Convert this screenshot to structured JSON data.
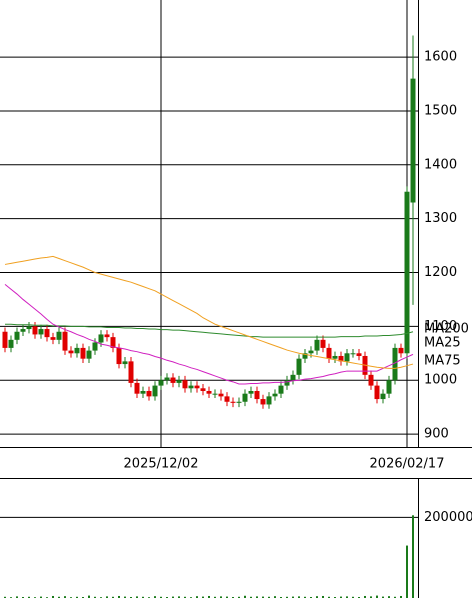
{
  "chart_data": {
    "type": "candlestick",
    "categories": [
      null,
      null,
      null,
      null,
      null,
      null,
      null,
      null,
      null,
      null,
      null,
      null,
      null,
      null,
      null,
      null,
      null,
      null,
      null,
      null,
      null,
      null,
      null,
      null,
      null,
      null,
      "2025/12/02",
      null,
      null,
      null,
      null,
      null,
      null,
      null,
      null,
      null,
      null,
      null,
      null,
      null,
      null,
      null,
      null,
      null,
      null,
      null,
      null,
      null,
      null,
      null,
      null,
      null,
      null,
      null,
      null,
      null,
      null,
      null,
      null,
      null,
      null,
      null,
      null,
      null,
      null,
      null,
      null,
      "2026/02/17",
      null
    ],
    "open": [
      1090,
      1060,
      1075,
      1090,
      1095,
      1100,
      1085,
      1095,
      1080,
      1075,
      1090,
      1055,
      1050,
      1060,
      1040,
      1055,
      1070,
      1085,
      1080,
      1060,
      1030,
      1035,
      995,
      975,
      980,
      970,
      990,
      1000,
      1005,
      995,
      1000,
      985,
      990,
      985,
      980,
      975,
      975,
      970,
      960,
      958,
      960,
      975,
      980,
      965,
      955,
      970,
      975,
      990,
      1000,
      1010,
      1040,
      1050,
      1055,
      1075,
      1060,
      1040,
      1045,
      1035,
      1050,
      1050,
      1045,
      1010,
      990,
      965,
      975,
      1000,
      1060,
      1050,
      1330
    ],
    "high": [
      1098,
      1083,
      1098,
      1103,
      1108,
      1108,
      1103,
      1103,
      1088,
      1098,
      1098,
      1063,
      1068,
      1068,
      1063,
      1078,
      1093,
      1093,
      1088,
      1068,
      1043,
      1043,
      1003,
      988,
      988,
      998,
      1008,
      1013,
      1013,
      1008,
      1008,
      998,
      998,
      993,
      988,
      983,
      983,
      978,
      968,
      968,
      983,
      988,
      988,
      973,
      978,
      983,
      998,
      1008,
      1018,
      1048,
      1058,
      1063,
      1083,
      1083,
      1068,
      1053,
      1053,
      1058,
      1058,
      1058,
      1053,
      1018,
      998,
      983,
      1008,
      1068,
      1068,
      1360,
      1640
    ],
    "low": [
      1052,
      1052,
      1067,
      1082,
      1087,
      1077,
      1077,
      1072,
      1067,
      1067,
      1047,
      1042,
      1042,
      1032,
      1032,
      1047,
      1062,
      1072,
      1052,
      1022,
      1022,
      987,
      967,
      967,
      962,
      962,
      982,
      992,
      987,
      987,
      977,
      977,
      977,
      972,
      967,
      967,
      962,
      952,
      950,
      950,
      952,
      967,
      957,
      947,
      947,
      962,
      967,
      982,
      992,
      1002,
      1032,
      1042,
      1047,
      1052,
      1032,
      1032,
      1027,
      1027,
      1042,
      1037,
      1002,
      982,
      957,
      957,
      967,
      992,
      1042,
      1040,
      1140
    ],
    "close": [
      1060,
      1075,
      1090,
      1095,
      1100,
      1085,
      1095,
      1080,
      1075,
      1090,
      1055,
      1050,
      1060,
      1040,
      1055,
      1070,
      1085,
      1080,
      1060,
      1030,
      1035,
      995,
      975,
      980,
      970,
      990,
      1000,
      1005,
      995,
      1000,
      985,
      990,
      985,
      980,
      975,
      975,
      970,
      960,
      958,
      960,
      975,
      980,
      965,
      955,
      970,
      975,
      990,
      1000,
      1010,
      1040,
      1050,
      1055,
      1075,
      1060,
      1040,
      1045,
      1035,
      1050,
      1050,
      1045,
      1010,
      990,
      965,
      975,
      1000,
      1060,
      1050,
      1350,
      1560
    ],
    "up_color": "#1a7a1a",
    "down_color": "#e00000",
    "ylim": [
      876,
      1706
    ],
    "yticks": [
      900,
      1000,
      1100,
      1200,
      1300,
      1400,
      1500,
      1600
    ],
    "grid": true,
    "series": [
      {
        "name": "MA200",
        "color": "#2e8b2e",
        "values": [
          1104,
          1104,
          1103,
          1103,
          1103,
          1102,
          1102,
          1102,
          1101,
          1101,
          1101,
          1100,
          1100,
          1100,
          1099,
          1099,
          1099,
          1098,
          1098,
          1098,
          1097,
          1097,
          1096,
          1096,
          1095,
          1095,
          1094,
          1094,
          1093,
          1093,
          1092,
          1091,
          1090,
          1089,
          1088,
          1087,
          1086,
          1085,
          1084,
          1083,
          1082,
          1081,
          1081,
          1080,
          1080,
          1080,
          1080,
          1080,
          1080,
          1080,
          1080,
          1080,
          1080,
          1080,
          1080,
          1080,
          1081,
          1081,
          1081,
          1081,
          1082,
          1082,
          1082,
          1083,
          1083,
          1084,
          1085,
          1087,
          1090
        ]
      },
      {
        "name": "MA25",
        "color": "#d020c0",
        "values": [
          1178,
          1169,
          1160,
          1150,
          1141,
          1132,
          1123,
          1113,
          1104,
          1099,
          1094,
          1090,
          1085,
          1081,
          1076,
          1072,
          1067,
          1065,
          1062,
          1060,
          1058,
          1055,
          1053,
          1050,
          1048,
          1044,
          1041,
          1037,
          1034,
          1030,
          1027,
          1023,
          1020,
          1016,
          1012,
          1008,
          1004,
          1000,
          997,
          993,
          993,
          994,
          994,
          995,
          995,
          996,
          996,
          997,
          999,
          1000,
          1002,
          1003,
          1005,
          1007,
          1010,
          1012,
          1015,
          1017,
          1017,
          1017,
          1017,
          1017,
          1017,
          1022,
          1027,
          1032,
          1038,
          1043,
          1048
        ]
      },
      {
        "name": "MA75",
        "color": "#f0a020",
        "values": [
          1215,
          1217,
          1219,
          1221,
          1223,
          1225,
          1227,
          1228,
          1230,
          1226,
          1222,
          1218,
          1214,
          1210,
          1205,
          1200,
          1197,
          1194,
          1191,
          1188,
          1185,
          1182,
          1178,
          1174,
          1170,
          1166,
          1160,
          1154,
          1148,
          1142,
          1136,
          1130,
          1124,
          1116,
          1110,
          1104,
          1100,
          1096,
          1092,
          1088,
          1084,
          1080,
          1076,
          1072,
          1068,
          1064,
          1060,
          1056,
          1053,
          1050,
          1048,
          1046,
          1044,
          1042,
          1040,
          1038,
          1036,
          1034,
          1032,
          1030,
          1028,
          1026,
          1024,
          1023,
          1022,
          1022,
          1024,
          1027,
          1030
        ]
      }
    ],
    "volume": {
      "color": "#1a7a1a",
      "ylim": [
        0,
        295000
      ],
      "yticks": [
        200000
      ],
      "values": [
        3000,
        2000,
        4000,
        2500,
        3000,
        2000,
        3500,
        2000,
        5000,
        3000,
        4500,
        2000,
        3000,
        2500,
        6000,
        3000,
        2000,
        4000,
        3000,
        5000,
        3500,
        2500,
        4000,
        3000,
        2000,
        4500,
        3000,
        2500,
        3500,
        4000,
        3000,
        2000,
        4500,
        3500,
        5000,
        3000,
        4000,
        3500,
        2500,
        3000,
        5500,
        3000,
        4000,
        3500,
        3000,
        4500,
        2500,
        3000,
        3500,
        4000,
        3000,
        2500,
        4500,
        5000,
        3000,
        2500,
        3500,
        4000,
        3000,
        2500,
        5000,
        4000,
        6000,
        3500,
        4500,
        3000,
        5000,
        130000,
        205000
      ]
    }
  }
}
